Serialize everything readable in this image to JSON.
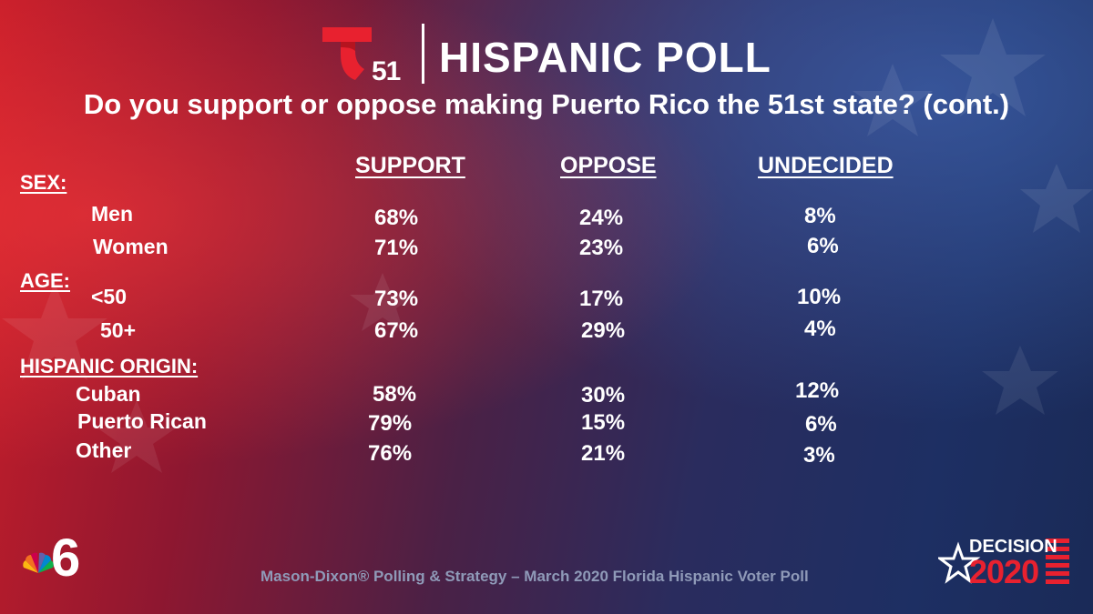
{
  "header": {
    "logo_number": "51",
    "title": "HISPANIC POLL",
    "question": "Do you support or oppose making Puerto Rico the 51st state?  (cont.)"
  },
  "columns": {
    "support": "SUPPORT",
    "oppose": "OPPOSE",
    "undecided": "UNDECIDED"
  },
  "groups": {
    "sex": {
      "label": "SEX:",
      "rows": [
        {
          "label": "Men",
          "support": "68%",
          "oppose": "24%",
          "undecided": "8%"
        },
        {
          "label": "Women",
          "support": "71%",
          "oppose": "23%",
          "undecided": "6%"
        }
      ]
    },
    "age": {
      "label": "AGE:",
      "rows": [
        {
          "label": "<50",
          "support": "73%",
          "oppose": "17%",
          "undecided": "10%"
        },
        {
          "label": "50+",
          "support": "67%",
          "oppose": "29%",
          "undecided": "4%"
        }
      ]
    },
    "origin": {
      "label": "HISPANIC ORIGIN:",
      "rows": [
        {
          "label": "Cuban",
          "support": "58%",
          "oppose": "30%",
          "undecided": "12%"
        },
        {
          "label": "Puerto Rican",
          "support": "79%",
          "oppose": "15%",
          "undecided": "6%"
        },
        {
          "label": "Other",
          "support": "76%",
          "oppose": "21%",
          "undecided": "3%"
        }
      ]
    }
  },
  "footer": {
    "source": "Mason-Dixon® Polling & Strategy – March 2020 Florida Hispanic Voter Poll",
    "station_number": "6",
    "decision_label": "DECISION",
    "decision_year": "2020"
  },
  "colors": {
    "telemundo_red": "#e8212f",
    "footer_text": "#8f9ab8"
  }
}
